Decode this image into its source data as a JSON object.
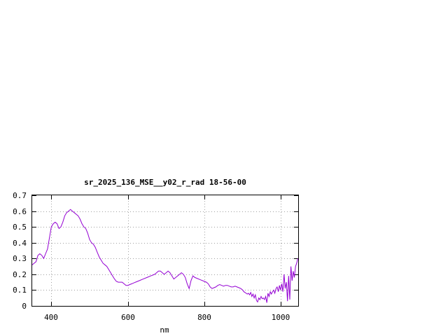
{
  "chart_data": {
    "type": "line",
    "title": "sr_2025_136_MSE__y02_r_rad 18-56-00",
    "xlabel": "nm",
    "ylabel": "",
    "xlim": [
      350,
      1045
    ],
    "ylim": [
      0,
      0.7
    ],
    "xticks": [
      400,
      600,
      800,
      1000
    ],
    "xtick_labels": [
      "400",
      "600",
      "800",
      "1000"
    ],
    "yticks": [
      0,
      0.1,
      0.2,
      0.3,
      0.4,
      0.5,
      0.6,
      0.7
    ],
    "ytick_labels": [
      "0",
      "0.1",
      "0.2",
      "0.3",
      "0.4",
      "0.5",
      "0.6",
      "0.7"
    ],
    "grid": true,
    "legend": "none",
    "series_color": "#9400d3",
    "series": [
      {
        "x": [
          350,
          355,
          360,
          365,
          370,
          375,
          380,
          385,
          390,
          395,
          400,
          405,
          410,
          415,
          420,
          425,
          430,
          435,
          440,
          445,
          450,
          455,
          460,
          465,
          470,
          475,
          480,
          485,
          490,
          495,
          500,
          505,
          510,
          515,
          520,
          525,
          530,
          535,
          540,
          545,
          550,
          555,
          560,
          565,
          570,
          575,
          580,
          585,
          590,
          595,
          600,
          605,
          610,
          620,
          630,
          640,
          650,
          660,
          670,
          675,
          680,
          685,
          690,
          695,
          700,
          705,
          710,
          715,
          720,
          725,
          730,
          735,
          740,
          745,
          750,
          755,
          760,
          765,
          770,
          775,
          780,
          790,
          800,
          805,
          810,
          815,
          820,
          825,
          830,
          835,
          840,
          845,
          850,
          855,
          860,
          865,
          870,
          875,
          880,
          885,
          890,
          895,
          900,
          903,
          906,
          909,
          912,
          915,
          918,
          921,
          924,
          927,
          930,
          933,
          936,
          939,
          942,
          945,
          948,
          951,
          954,
          957,
          960,
          963,
          966,
          969,
          972,
          975,
          978,
          981,
          984,
          987,
          990,
          993,
          996,
          999,
          1002,
          1005,
          1008,
          1011,
          1014,
          1017,
          1020,
          1023,
          1026,
          1029,
          1032,
          1035,
          1038,
          1041,
          1044
        ],
        "y": [
          0.26,
          0.27,
          0.28,
          0.32,
          0.33,
          0.32,
          0.3,
          0.33,
          0.36,
          0.43,
          0.5,
          0.52,
          0.53,
          0.52,
          0.49,
          0.5,
          0.53,
          0.57,
          0.59,
          0.6,
          0.61,
          0.6,
          0.59,
          0.58,
          0.57,
          0.55,
          0.52,
          0.5,
          0.49,
          0.46,
          0.42,
          0.4,
          0.39,
          0.37,
          0.34,
          0.31,
          0.29,
          0.27,
          0.26,
          0.25,
          0.23,
          0.21,
          0.19,
          0.17,
          0.155,
          0.15,
          0.15,
          0.15,
          0.14,
          0.13,
          0.13,
          0.135,
          0.14,
          0.15,
          0.16,
          0.17,
          0.18,
          0.19,
          0.2,
          0.21,
          0.22,
          0.22,
          0.21,
          0.2,
          0.21,
          0.22,
          0.21,
          0.19,
          0.17,
          0.18,
          0.19,
          0.2,
          0.21,
          0.2,
          0.18,
          0.14,
          0.11,
          0.16,
          0.19,
          0.18,
          0.175,
          0.165,
          0.155,
          0.15,
          0.14,
          0.12,
          0.11,
          0.115,
          0.12,
          0.13,
          0.135,
          0.13,
          0.125,
          0.13,
          0.13,
          0.125,
          0.12,
          0.12,
          0.125,
          0.12,
          0.115,
          0.11,
          0.1,
          0.09,
          0.085,
          0.08,
          0.075,
          0.08,
          0.07,
          0.085,
          0.06,
          0.075,
          0.05,
          0.07,
          0.035,
          0.025,
          0.05,
          0.04,
          0.06,
          0.045,
          0.05,
          0.04,
          0.06,
          0.02,
          0.08,
          0.06,
          0.09,
          0.075,
          0.09,
          0.1,
          0.08,
          0.11,
          0.12,
          0.09,
          0.13,
          0.1,
          0.14,
          0.09,
          0.2,
          0.11,
          0.15,
          0.03,
          0.19,
          0.04,
          0.25,
          0.16,
          0.22,
          0.18,
          0.25,
          0.27,
          0.3
        ]
      }
    ]
  }
}
